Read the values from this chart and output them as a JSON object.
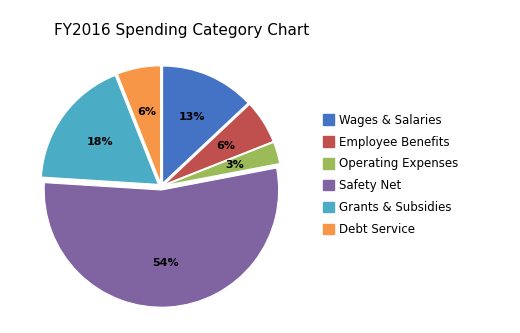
{
  "title": "FY2016 Spending Category Chart",
  "labels": [
    "Wages & Salaries",
    "Employee Benefits",
    "Operating Expenses",
    "Safety Net",
    "Grants & Subsidies",
    "Debt Service"
  ],
  "values": [
    13,
    6,
    3,
    54,
    18,
    6
  ],
  "colors": [
    "#4472C4",
    "#C0504D",
    "#9BBB59",
    "#8064A2",
    "#4BACC6",
    "#F79646"
  ],
  "startangle": 90,
  "pct_labels": [
    "13%",
    "6%",
    "3%",
    "54%",
    "18%",
    "6%"
  ],
  "title_fontsize": 11,
  "legend_fontsize": 8.5,
  "background_color": "#ffffff",
  "explode": [
    0.03,
    0.03,
    0.03,
    0.03,
    0.03,
    0.03
  ]
}
